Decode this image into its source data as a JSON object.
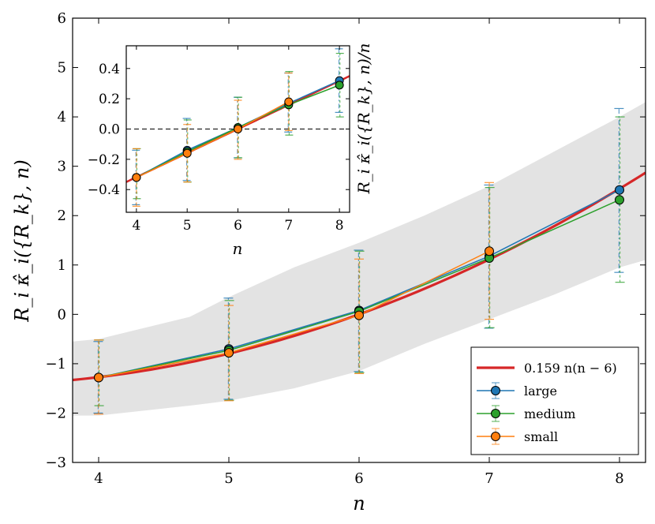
{
  "chart_data": [
    {
      "type": "line",
      "xlabel": "n",
      "ylabel": "R_i κ̂_i({R_k}, n)",
      "xlim": [
        3.8,
        8.2
      ],
      "ylim": [
        -3,
        6
      ],
      "xticks": [
        4,
        5,
        6,
        7,
        8
      ],
      "yticks": [
        -3,
        -2,
        -1,
        0,
        1,
        2,
        3,
        4,
        5,
        6
      ],
      "fit": {
        "name": "0.159 n(n − 6)",
        "coef": 0.159,
        "color": "#d62728"
      },
      "band": {
        "x": [
          3.8,
          4.0,
          4.7,
          5.0,
          5.5,
          6.0,
          6.5,
          7.0,
          7.5,
          8.0,
          8.2
        ],
        "upper": [
          -0.55,
          -0.5,
          -0.05,
          0.35,
          0.95,
          1.45,
          2.0,
          2.6,
          3.3,
          4.0,
          4.3
        ],
        "lower": [
          -2.05,
          -2.05,
          -1.85,
          -1.75,
          -1.5,
          -1.15,
          -0.6,
          -0.1,
          0.4,
          0.95,
          1.1
        ]
      },
      "series": [
        {
          "name": "large",
          "color": "#1f77b4",
          "x": [
            4,
            5,
            6,
            7,
            8
          ],
          "y": [
            -1.28,
            -0.7,
            0.08,
            1.18,
            2.52
          ],
          "err_low": [
            -2.0,
            -1.72,
            -1.16,
            -0.28,
            0.85
          ],
          "err_high": [
            -0.55,
            0.33,
            1.3,
            2.62,
            4.17
          ]
        },
        {
          "name": "medium",
          "color": "#2ca02c",
          "x": [
            4,
            5,
            6,
            7,
            8
          ],
          "y": [
            -1.28,
            -0.73,
            0.06,
            1.14,
            2.32
          ],
          "err_low": [
            -1.85,
            -1.74,
            -1.18,
            -0.27,
            0.65
          ],
          "err_high": [
            -0.52,
            0.28,
            1.28,
            2.57,
            4.0
          ]
        },
        {
          "name": "small",
          "color": "#ff7f0e",
          "x": [
            4,
            5,
            6,
            7,
            8
          ],
          "y": [
            -1.28,
            -0.78,
            -0.02,
            1.28,
            null
          ],
          "err_low": [
            -2.02,
            -1.75,
            -1.2,
            -0.1,
            null
          ],
          "err_high": [
            -0.52,
            0.18,
            1.12,
            2.67,
            null
          ]
        }
      ],
      "legend": {
        "placement": "lower-right",
        "entries": [
          "0.159 n(n − 6)",
          "large",
          "medium",
          "small"
        ]
      }
    },
    {
      "type": "line",
      "xlabel": "n",
      "ylabel": "R_i κ̂_i({R_k}, n)/n",
      "xlim": [
        3.8,
        8.2
      ],
      "ylim": [
        -0.55,
        0.55
      ],
      "xticks": [
        4,
        5,
        6,
        7,
        8
      ],
      "yticks": [
        -0.4,
        -0.2,
        0.0,
        0.2,
        0.4
      ],
      "zero_line": true,
      "fit": {
        "name": "0.159 (n − 6)",
        "coef": 0.159,
        "color": "#d62728"
      },
      "series": [
        {
          "name": "large",
          "color": "#1f77b4",
          "x": [
            4,
            5,
            6,
            7,
            8
          ],
          "y": [
            -0.32,
            -0.14,
            0.01,
            0.17,
            0.32
          ],
          "err_low": [
            -0.5,
            -0.34,
            -0.19,
            -0.02,
            0.11
          ],
          "err_high": [
            -0.14,
            0.07,
            0.21,
            0.37,
            0.53
          ]
        },
        {
          "name": "medium",
          "color": "#2ca02c",
          "x": [
            4,
            5,
            6,
            7,
            8
          ],
          "y": [
            -0.32,
            -0.15,
            0.01,
            0.16,
            0.29
          ],
          "err_low": [
            -0.46,
            -0.35,
            -0.19,
            -0.04,
            0.08
          ],
          "err_high": [
            -0.13,
            0.06,
            0.21,
            0.38,
            0.5
          ]
        },
        {
          "name": "small",
          "color": "#ff7f0e",
          "x": [
            4,
            5,
            6,
            7,
            8
          ],
          "y": [
            -0.32,
            -0.16,
            0.0,
            0.18,
            null
          ],
          "err_low": [
            -0.51,
            -0.35,
            -0.2,
            -0.01,
            null
          ],
          "err_high": [
            -0.13,
            0.03,
            0.19,
            0.37,
            null
          ]
        }
      ]
    }
  ]
}
